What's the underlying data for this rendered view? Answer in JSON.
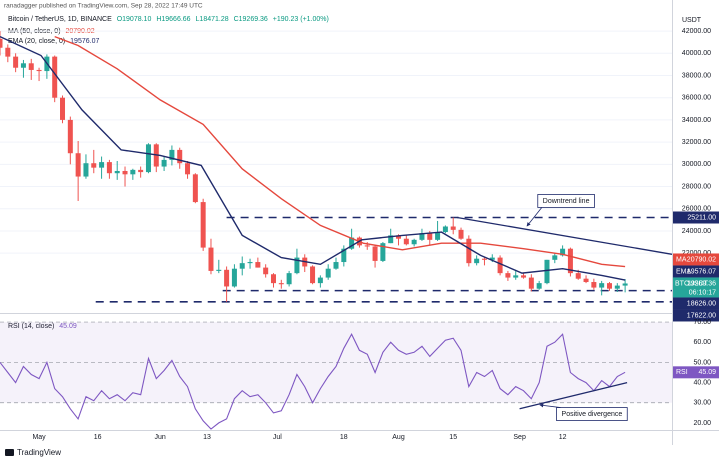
{
  "header": {
    "publisher": "ranadagger published on TradingView.com, Sep 28, 2022 17:49 UTC",
    "currency": "USDT",
    "logo": "TradingView"
  },
  "chart_data": [
    {
      "type": "candlestick",
      "title": "Bitcoin / TetherUS, 1D, BINANCE",
      "ohlc_labels": [
        "O19078.10",
        "H19666.66",
        "L18471.28",
        "C19269.36"
      ],
      "change_label": "+190.23 (+1.00%)",
      "x": [
        0,
        2,
        4,
        6,
        8,
        10,
        12,
        14,
        16,
        18,
        20,
        22,
        24,
        26,
        28,
        30,
        32,
        34,
        36,
        38,
        40,
        42,
        44,
        46,
        48,
        50,
        52,
        54,
        56,
        58,
        60,
        62,
        64,
        66,
        68,
        70,
        72,
        74,
        76,
        78,
        80,
        82,
        84,
        86,
        88,
        90,
        92,
        94,
        96,
        98,
        100,
        102,
        104,
        106,
        108,
        110,
        112,
        114,
        116,
        118,
        120,
        122,
        124,
        126,
        128,
        130,
        132,
        134,
        136,
        138,
        140,
        142,
        144,
        146,
        148,
        150,
        152,
        154,
        156,
        158,
        160
      ],
      "open": [
        41300,
        40500,
        39700,
        38700,
        39100,
        38500,
        38400,
        39700,
        36000,
        34000,
        31000,
        28900,
        30100,
        29700,
        30200,
        29200,
        29400,
        29100,
        29500,
        29300,
        31800,
        29800,
        30400,
        31300,
        30100,
        29100,
        26600,
        22500,
        20400,
        20500,
        19000,
        20600,
        21100,
        21200,
        20700,
        20100,
        19300,
        19200,
        20200,
        21600,
        20800,
        19300,
        19800,
        20600,
        21200,
        22400,
        23400,
        22700,
        22600,
        21300,
        22900,
        23600,
        23300,
        22800,
        23200,
        23800,
        23200,
        23900,
        24400,
        24100,
        23300,
        21100,
        21500,
        21400,
        21600,
        20200,
        19800,
        20000,
        19800,
        18800,
        19300,
        21400,
        21800,
        22400,
        20200,
        19700,
        19400,
        18900,
        19300,
        18800,
        19078.1
      ],
      "high": [
        42000,
        40800,
        40000,
        39400,
        39500,
        38700,
        39900,
        39800,
        36200,
        34300,
        32100,
        30900,
        31300,
        30700,
        30400,
        30300,
        29800,
        29600,
        29800,
        31900,
        31900,
        30700,
        31700,
        31500,
        30300,
        29200,
        26900,
        23300,
        21400,
        20800,
        21000,
        21700,
        21500,
        21600,
        21000,
        20200,
        19600,
        20400,
        22400,
        21900,
        20900,
        20000,
        21000,
        21600,
        22700,
        24200,
        23500,
        23000,
        22700,
        23000,
        24200,
        23700,
        23600,
        23300,
        24200,
        24000,
        24900,
        24500,
        25211,
        24300,
        23600,
        21800,
        21700,
        21900,
        21800,
        20400,
        20500,
        20200,
        20100,
        19500,
        21400,
        22000,
        22700,
        22500,
        20500,
        20000,
        19700,
        19500,
        19400,
        19300,
        19666.66
      ],
      "low": [
        39800,
        39200,
        38300,
        37800,
        37600,
        37500,
        37700,
        35600,
        33700,
        30000,
        26700,
        28700,
        29200,
        28700,
        28700,
        28600,
        28000,
        28600,
        28800,
        29200,
        29300,
        29400,
        29900,
        29600,
        28700,
        26500,
        22200,
        20100,
        20200,
        17622,
        18900,
        20000,
        20600,
        20700,
        19800,
        18900,
        18800,
        19000,
        20100,
        20300,
        19200,
        18900,
        19600,
        20500,
        20800,
        22300,
        22500,
        22300,
        20700,
        21200,
        22900,
        22700,
        22700,
        22600,
        23100,
        22700,
        23100,
        23800,
        23700,
        23200,
        20800,
        20900,
        20900,
        21200,
        20000,
        19500,
        19600,
        19700,
        18550,
        18700,
        19200,
        21100,
        21700,
        19900,
        19600,
        19300,
        18700,
        18200,
        18600,
        18500,
        18471.28
      ],
      "close": [
        40500,
        39700,
        38700,
        39100,
        38500,
        38400,
        39700,
        36000,
        34000,
        31000,
        28900,
        30100,
        29700,
        30200,
        29200,
        29400,
        29100,
        29500,
        29300,
        31800,
        29800,
        30400,
        31300,
        30100,
        29100,
        26600,
        22500,
        20400,
        20500,
        19000,
        20600,
        21100,
        21200,
        20700,
        20100,
        19300,
        19200,
        20200,
        21600,
        20800,
        19300,
        19800,
        20600,
        21200,
        22400,
        23400,
        22700,
        22600,
        21300,
        22900,
        23600,
        23300,
        22800,
        23200,
        23800,
        23200,
        23900,
        24400,
        24100,
        23300,
        21100,
        21500,
        21400,
        21600,
        20200,
        19800,
        20000,
        19800,
        18800,
        19300,
        21400,
        21800,
        22400,
        20200,
        19700,
        19400,
        18900,
        19300,
        18800,
        19078.1,
        19269.36
      ],
      "up_color": "#26a69a",
      "down_color": "#ef5350",
      "xlim": [
        0,
        172
      ],
      "xticks": [
        {
          "value": 10,
          "label": "May"
        },
        {
          "value": 25,
          "label": "16"
        },
        {
          "value": 41,
          "label": "Jun"
        },
        {
          "value": 53,
          "label": "13"
        },
        {
          "value": 71,
          "label": "Jul"
        },
        {
          "value": 88,
          "label": "18"
        },
        {
          "value": 102,
          "label": "Aug"
        },
        {
          "value": 116,
          "label": "15"
        },
        {
          "value": 133,
          "label": "Sep"
        },
        {
          "value": 144,
          "label": "12"
        }
      ],
      "ylim": [
        16700,
        44800
      ],
      "yticks": [
        {
          "value": 22000,
          "label": "22000.00"
        },
        {
          "value": 24000,
          "label": "24000.00"
        },
        {
          "value": 26000,
          "label": "26000.00"
        },
        {
          "value": 28000,
          "label": "28000.00"
        },
        {
          "value": 30000,
          "label": "30000.00"
        },
        {
          "value": 32000,
          "label": "32000.00"
        },
        {
          "value": 34000,
          "label": "34000.00"
        },
        {
          "value": 36000,
          "label": "36000.00"
        },
        {
          "value": 38000,
          "label": "38000.00"
        },
        {
          "value": 40000,
          "label": "40000.00"
        },
        {
          "value": 42000,
          "label": "42000.00"
        }
      ],
      "grid": true,
      "series": [
        {
          "name": "MA (50, close, 0)",
          "badge": "MA",
          "color": "#e5483d",
          "x": [
            14,
            20,
            30,
            41,
            52,
            62,
            72,
            82,
            93,
            103,
            113,
            123,
            134,
            144,
            154,
            160
          ],
          "values": [
            41500,
            40700,
            38600,
            35800,
            33600,
            29600,
            26900,
            24500,
            22900,
            22300,
            22900,
            22900,
            22400,
            21900,
            21000,
            20790.02
          ],
          "value_label": "20790.02"
        },
        {
          "name": "EMA (20, close, 0)",
          "badge": "EMA",
          "color": "#1f2a6b",
          "x": [
            0,
            10.5,
            21,
            31,
            41,
            51.5,
            62,
            72,
            82,
            92.6,
            103,
            113,
            123,
            133.6,
            144,
            154,
            160
          ],
          "values": [
            41500,
            39800,
            34900,
            31300,
            30800,
            29900,
            23600,
            21600,
            21000,
            23200,
            23600,
            23900,
            21800,
            20200,
            20600,
            20000,
            19576.07
          ],
          "value_label": "19576.07"
        }
      ],
      "last_label": "BTCUSDT",
      "last_value_label": "19269.36",
      "countdown": "06:10:17",
      "levels": [
        {
          "value": 25211,
          "label": "25211.00",
          "x_start": 58
        },
        {
          "value": 18626,
          "label": "18626.00",
          "x_start": 57
        },
        {
          "value": 17622,
          "label": "17622.00",
          "x_start": 24.5
        }
      ],
      "trendlines": [
        {
          "x": [
            117,
            172
          ],
          "values": [
            25211,
            21900
          ]
        }
      ],
      "annotations": [
        {
          "text": "Downtrend line",
          "x": 144.9,
          "y": 26700,
          "arrow_to": [
            134.9,
            24450
          ]
        }
      ]
    },
    {
      "type": "line",
      "title": "RSI (14, close)",
      "badge": "RSI",
      "value_label": "45.09",
      "color": "#7e57c2",
      "x": [
        0,
        2,
        4,
        6,
        8,
        10,
        12,
        14,
        16,
        18,
        20,
        22,
        24,
        26,
        28,
        30,
        32,
        34,
        36,
        38,
        40,
        42,
        44,
        46,
        48,
        50,
        52,
        54,
        56,
        58,
        60,
        62,
        64,
        66,
        68,
        70,
        72,
        74,
        76,
        78,
        80,
        82,
        84,
        86,
        88,
        90,
        92,
        94,
        96,
        98,
        100,
        102,
        104,
        106,
        108,
        110,
        112,
        114,
        116,
        118,
        120,
        122,
        124,
        126,
        128,
        130,
        132,
        134,
        136,
        138,
        140,
        142,
        144,
        146,
        148,
        150,
        152,
        154,
        156,
        158,
        160
      ],
      "values": [
        50,
        45,
        40,
        48,
        44,
        42,
        50,
        37,
        33,
        27,
        22,
        33,
        31,
        36,
        32,
        34,
        31,
        35,
        34,
        52,
        42,
        46,
        51,
        43,
        38,
        27,
        21,
        17,
        20,
        22,
        32,
        36,
        33,
        34,
        30,
        25,
        26,
        34,
        44,
        38,
        30,
        37,
        43,
        48,
        57,
        64,
        56,
        54,
        45,
        55,
        60,
        56,
        54,
        55,
        58,
        53,
        57,
        61,
        62,
        56,
        38,
        45,
        43,
        46,
        37,
        34,
        38,
        36,
        32,
        40,
        58,
        60,
        64,
        45,
        42,
        40,
        36,
        41,
        38,
        43,
        45.09
      ],
      "xlim": [
        0,
        172
      ],
      "ylim": [
        16.5,
        74
      ],
      "yticks": [
        {
          "value": 20,
          "label": "20.00"
        },
        {
          "value": 30,
          "label": "30.00"
        },
        {
          "value": 40,
          "label": "40.00"
        },
        {
          "value": 50,
          "label": "50.00"
        },
        {
          "value": 60,
          "label": "60.00"
        },
        {
          "value": 70,
          "label": "70.00"
        }
      ],
      "band": [
        30,
        70
      ],
      "levels": [
        70,
        50,
        30
      ],
      "trendlines": [
        {
          "x": [
            133,
            160.5
          ],
          "values": [
            27,
            40
          ]
        }
      ],
      "annotations": [
        {
          "text": "Positive divergence",
          "x": 151.5,
          "y": 24.4,
          "arrow_to": [
            138.2,
            28.9
          ]
        }
      ]
    }
  ]
}
